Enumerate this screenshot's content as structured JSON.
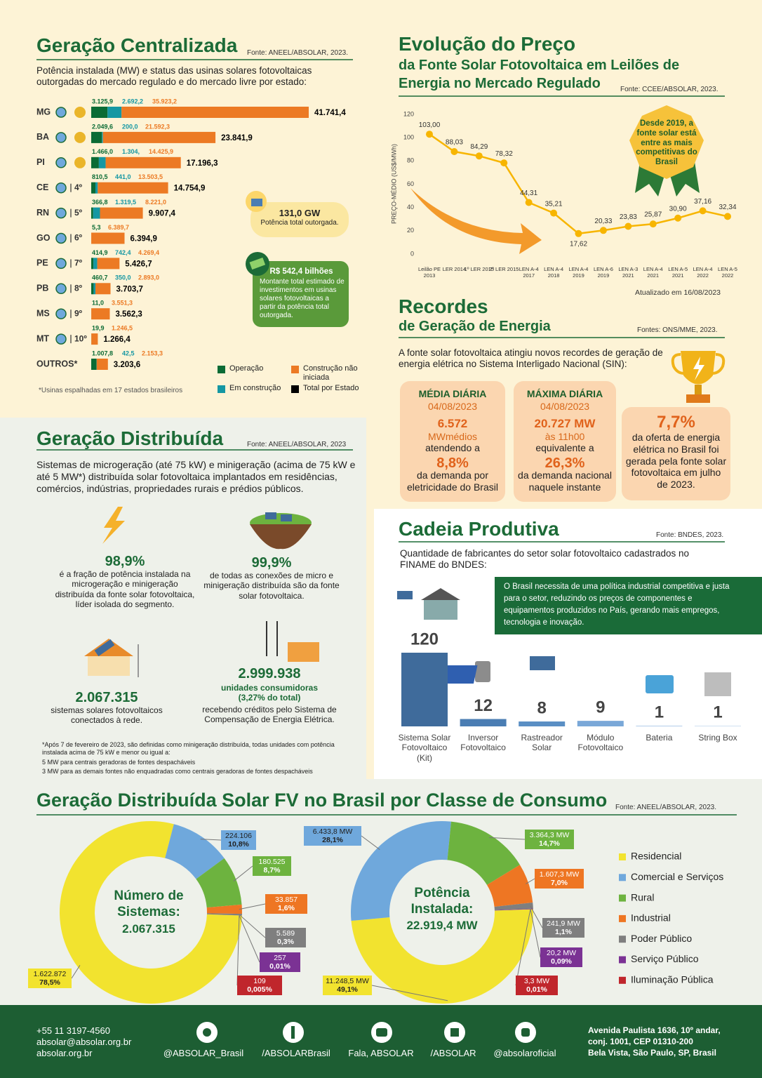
{
  "centralizada": {
    "title": "Geração Centralizada",
    "source": "Fonte: ANEEL/ABSOLAR, 2023.",
    "description": "Potência instalada (MW) e status das usinas solares fotovoltaicas outorgadas do mercado regulado e do mercado livre por estado:",
    "footnote": "*Usinas espalhadas em 17 estados brasileiros",
    "total_power": "131,0 GW",
    "total_power_label": "Potência total outorgada.",
    "investment": "R$ 542,4 bilhões",
    "investment_label": "Montante total estimado de investimentos em usinas solares fotovoltaicas a partir da potência total outorgada."
  },
  "preco": {
    "title": "Evolução do Preço",
    "subtitle": "da Fonte Solar Fotovoltaica em Leilões de Energia no Mercado Regulado",
    "source": "Fonte: CCEE/ABSOLAR, 2023.",
    "badge": "Desde 2019, a fonte solar está entre as mais competitivas do Brasil",
    "updated": "Atualizado em 16/08/2023"
  },
  "recordes": {
    "title": "Recordes",
    "subtitle": "de Geração de Energia",
    "source": "Fontes: ONS/MME, 2023.",
    "intro": "A fonte solar fotovoltaica atingiu novos recordes de geração de energia elétrica no Sistema Interligado Nacional (SIN):",
    "cards": [
      {
        "heading": "MÉDIA DIÁRIA",
        "date": "04/08/2023",
        "value": "6.572",
        "unit": "MWmédios",
        "connector": "atendendo a",
        "share": "8,8%",
        "detail": "da demanda por eletricidade do Brasil"
      },
      {
        "heading": "MÁXIMA DIÁRIA",
        "date": "04/08/2023",
        "value": "20.727 MW",
        "unit": "às 11h00",
        "connector": "equivalente a",
        "share": "26,3%",
        "detail": "da demanda nacional naquele instante"
      },
      {
        "share": "7,7%",
        "detail": "da oferta de energia elétrica no Brasil foi gerada pela fonte solar fotovoltaica em julho de 2023."
      }
    ]
  },
  "distribuida": {
    "title": "Geração Distribuída",
    "source": "Fonte: ANEEL/ABSOLAR, 2023",
    "description": "Sistemas de microgeração (até 75 kW) e minigeração (acima de 75 kW e até 5 MW*) distribuída solar fotovoltaica implantados em residências, comércios, indústrias, propriedades rurais e prédios públicos.",
    "stats": [
      {
        "value": "98,9%",
        "text": "é a fração de potência instalada na microgeração e minigeração distribuída da fonte solar fotovoltaica, líder isolada do segmento."
      },
      {
        "value": "99,9%",
        "text": "de todas as conexões de micro e minigeração distribuída são da fonte solar fotovoltaica."
      },
      {
        "value": "2.067.315",
        "text": "sistemas solares fotovoltaicos conectados à rede."
      },
      {
        "value": "2.999.938",
        "highlight": "unidades consumidoras (3,27% do total)",
        "text": "recebendo créditos pelo Sistema de Compensação de Energia Elétrica."
      }
    ],
    "footnotes": [
      "*Após 7 de fevereiro de 2023, são definidas como minigeração distribuída, todas unidades com potência instalada acima de 75 kW e menor ou igual a:",
      "5 MW para centrais geradoras de fontes despacháveis",
      "3 MW para as demais fontes não enquadradas como centrais geradoras de fontes despacháveis"
    ]
  },
  "cadeia": {
    "title": "Cadeia Produtiva",
    "source": "Fonte: BNDES, 2023.",
    "description": "Quantidade de fabricantes do setor solar fotovoltaico cadastrados no FINAME do BNDES:",
    "note": "O Brasil necessita de uma política industrial competitiva e justa para o setor, reduzindo os preços de componentes e equipamentos produzidos no País, gerando mais empregos, tecnologia e inovação."
  },
  "classe": {
    "title": "Geração Distribuída Solar FV no Brasil por Classe de Consumo",
    "source": "Fonte: ANEEL/ABSOLAR, 2023."
  },
  "footer": {
    "phone": "+55 11 3197-4560",
    "email": "absolar@absolar.org.br",
    "website": "absolar.org.br",
    "social": [
      "@ABSOLAR_Brasil",
      "/ABSOLARBrasil",
      "Fala, ABSOLAR",
      "/ABSOLAR",
      "@absolaroficial"
    ],
    "address": [
      "Avenida Paulista 1636, 10º andar,",
      "conj. 1001, CEP 01310-200",
      "Bela Vista, São Paulo, SP, Brasil"
    ]
  },
  "chart_data": [
    {
      "type": "hbar-stacked",
      "categories": [
        "MG",
        "BA",
        "PI",
        "CE",
        "RN",
        "GO",
        "PE",
        "PB",
        "MS",
        "MT",
        "OUTROS*"
      ],
      "ranks": [
        null,
        null,
        null,
        "4º",
        "5º",
        "6º",
        "7º",
        "8º",
        "9º",
        "10º",
        null
      ],
      "series": [
        {
          "name": "Operação",
          "color": "#0b6b35",
          "values": [
            3125.9,
            2049.6,
            1466.0,
            810.5,
            366.8,
            5.3,
            414.9,
            460.7,
            11.0,
            19.9,
            1007.8
          ],
          "value_labels": [
            "3.125,9",
            "2.049,6",
            "1.466,0",
            "810,5",
            "366,8",
            "5,3",
            "414,9",
            "460,7",
            "11,0",
            "19,9",
            "1.007,8"
          ]
        },
        {
          "name": "Em construção",
          "color": "#1597a3",
          "values": [
            2692.2,
            200.0,
            1304,
            441.0,
            1319.5,
            null,
            742.4,
            350.0,
            null,
            null,
            42.5
          ],
          "value_labels": [
            "2.692,2",
            "200,0",
            "1.304,",
            "441,0",
            "1.319,5",
            null,
            "742,4",
            "350,0",
            null,
            null,
            "42,5"
          ]
        },
        {
          "name": "Construção não iniciada",
          "color": "#ec7a24",
          "values": [
            35923.2,
            21592.3,
            14425.9,
            13503.5,
            8221.0,
            6389.7,
            4269.4,
            2893.0,
            3551.3,
            1246.5,
            2153.3
          ],
          "value_labels": [
            "35.923,2",
            "21.592,3",
            "14.425,9",
            "13.503,5",
            "8.221,0",
            "6.389,7",
            "4.269,4",
            "2.893,0",
            "3.551,3",
            "1.246,5",
            "2.153,3"
          ]
        }
      ],
      "totals": {
        "name": "Total por Estado",
        "color": "#000000",
        "values": [
          41741.4,
          23841.9,
          17196.3,
          14754.9,
          9907.4,
          6394.9,
          5426.7,
          3703.7,
          3562.3,
          1266.4,
          3203.6
        ],
        "value_labels": [
          "41.741,4",
          "23.841,9",
          "17.196,3",
          "14.754,9",
          "9.907,4",
          "6.394,9",
          "5.426,7",
          "3.703,7",
          "3.562,3",
          "1.266,4",
          "3.203,6"
        ]
      }
    },
    {
      "type": "line",
      "categories": [
        "Leilão PE 2013",
        "LER 2014",
        "1º LER 2015",
        "2º LER 2015",
        "LEN A-4 2017",
        "LEN A-4 2018",
        "LEN A-4 2019",
        "LEN A-6 2019",
        "LEN A-3 2021",
        "LEN A-4 2021",
        "LEN A-5 2021",
        "LEN A-4 2022",
        "LEN A-5 2022"
      ],
      "values": [
        103.0,
        88.03,
        84.29,
        78.32,
        44.31,
        35.21,
        17.62,
        20.33,
        23.83,
        25.87,
        30.9,
        37.16,
        32.34
      ],
      "value_labels": [
        "103,00",
        "88,03",
        "84,29",
        "78,32",
        "44,31",
        "35,21",
        "17,62",
        "20,33",
        "23,83",
        "25,87",
        "30,90",
        "37,16",
        "32,34"
      ],
      "color": "#f7b500",
      "ylim": [
        0,
        120
      ],
      "yticks": [
        0,
        20,
        40,
        60,
        80,
        100,
        120
      ],
      "y_label": "PREÇO-MÉDIO (US$/MWh)"
    },
    {
      "type": "bar",
      "categories": [
        "Sistema Solar Fotovoltaico (Kit)",
        "Inversor Fotovoltaico",
        "Rastreador Solar",
        "Módulo Fotovoltaico",
        "Bateria",
        "String Box"
      ],
      "values": [
        120,
        12,
        8,
        9,
        1,
        1
      ],
      "colors": [
        "#3f6b9b",
        "#4a7db3",
        "#5a8fc4",
        "#7aa8d8",
        "#a8c6e6",
        "#c9dcee"
      ]
    },
    {
      "type": "donut",
      "title": "Número de Sistemas:",
      "total_label": "2.067.315",
      "categories": [
        "Residencial",
        "Comercial e Serviços",
        "Rural",
        "Industrial",
        "Poder Público",
        "Serviço Público",
        "Iluminação Pública"
      ],
      "colors": [
        "#f2e32f",
        "#6fa8dc",
        "#6db33f",
        "#ee7623",
        "#7f7f7f",
        "#7b3294",
        "#c0262c"
      ],
      "values": [
        1622872,
        224106,
        180525,
        33857,
        5589,
        257,
        109
      ],
      "value_labels": [
        "1.622.872",
        "224.106",
        "180.525",
        "33.857",
        "5.589",
        "257",
        "109"
      ],
      "percents": [
        78.5,
        10.8,
        8.7,
        1.6,
        0.3,
        0.01,
        0.005
      ],
      "percent_labels": [
        "78,5%",
        "10,8%",
        "8,7%",
        "1,6%",
        "0,3%",
        "0,01%",
        "0,005%"
      ]
    },
    {
      "type": "donut",
      "title": "Potência Instalada:",
      "total_label": "22.919,4 MW",
      "values": [
        11248.5,
        6433.8,
        3364.3,
        1607.3,
        241.9,
        20.2,
        3.3
      ],
      "value_labels": [
        "11.248,5 MW",
        "6.433,8 MW",
        "3.364,3 MW",
        "1.607,3 MW",
        "241,9 MW",
        "20,2 MW",
        "3,3 MW"
      ],
      "percents": [
        49.1,
        28.1,
        14.7,
        7.0,
        1.1,
        0.09,
        0.01
      ],
      "percent_labels": [
        "49,1%",
        "28,1%",
        "14,7%",
        "7,0%",
        "1,1%",
        "0,09%",
        "0,01%"
      ]
    }
  ]
}
